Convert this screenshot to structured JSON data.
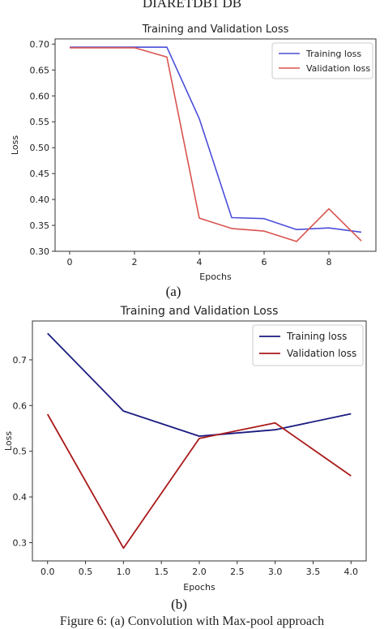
{
  "figure": {
    "top_caption": "DIARETDB1 DB",
    "label_a": "(a)",
    "label_b": "(b)",
    "bottom_caption": "Figure 6: (a) Convolution with Max-pool approach"
  },
  "chart_data": [
    {
      "type": "line",
      "title": "Training and Validation Loss",
      "xlabel": "Epochs",
      "ylabel": "Loss",
      "xlim": [
        -0.45,
        9.45
      ],
      "ylim": [
        0.3,
        0.71
      ],
      "xticks": [
        0,
        2,
        4,
        6,
        8
      ],
      "yticks": [
        0.3,
        0.35,
        0.4,
        0.45,
        0.5,
        0.55,
        0.6,
        0.65,
        0.7
      ],
      "ytick_labels": [
        "0.30",
        "0.35",
        "0.40",
        "0.45",
        "0.50",
        "0.55",
        "0.60",
        "0.65",
        "0.70"
      ],
      "grid": false,
      "legend_position": "top-right",
      "series": [
        {
          "name": "Training loss",
          "color": "#4a4fd8",
          "x": [
            0,
            1,
            2,
            3,
            4,
            5,
            6,
            7,
            8,
            9
          ],
          "y": [
            0.694,
            0.694,
            0.694,
            0.694,
            0.556,
            0.365,
            0.363,
            0.342,
            0.345,
            0.337
          ]
        },
        {
          "name": "Validation loss",
          "color": "#d9534f",
          "x": [
            0,
            1,
            2,
            3,
            4,
            5,
            6,
            7,
            8,
            9
          ],
          "y": [
            0.693,
            0.693,
            0.693,
            0.675,
            0.364,
            0.344,
            0.339,
            0.319,
            0.382,
            0.32
          ]
        }
      ]
    },
    {
      "type": "line",
      "title": "Training and Validation Loss",
      "xlabel": "Epochs",
      "ylabel": "Loss",
      "xlim": [
        -0.2,
        4.2
      ],
      "ylim": [
        0.26,
        0.785
      ],
      "xticks": [
        0.0,
        0.5,
        1.0,
        1.5,
        2.0,
        2.5,
        3.0,
        3.5,
        4.0
      ],
      "xtick_labels": [
        "0.0",
        "0.5",
        "1.0",
        "1.5",
        "2.0",
        "2.5",
        "3.0",
        "3.5",
        "4.0"
      ],
      "yticks": [
        0.3,
        0.4,
        0.5,
        0.6,
        0.7
      ],
      "ytick_labels": [
        "0.3",
        "0.4",
        "0.5",
        "0.6",
        "0.7"
      ],
      "grid": false,
      "legend_position": "top-right",
      "series": [
        {
          "name": "Training loss",
          "color": "#1a1a80",
          "x": [
            0,
            1,
            2,
            3,
            4
          ],
          "y": [
            0.758,
            0.588,
            0.533,
            0.547,
            0.582
          ]
        },
        {
          "name": "Validation loss",
          "color": "#aa1a1a",
          "x": [
            0,
            1,
            2,
            3,
            4
          ],
          "y": [
            0.581,
            0.288,
            0.528,
            0.562,
            0.446
          ]
        }
      ]
    }
  ]
}
